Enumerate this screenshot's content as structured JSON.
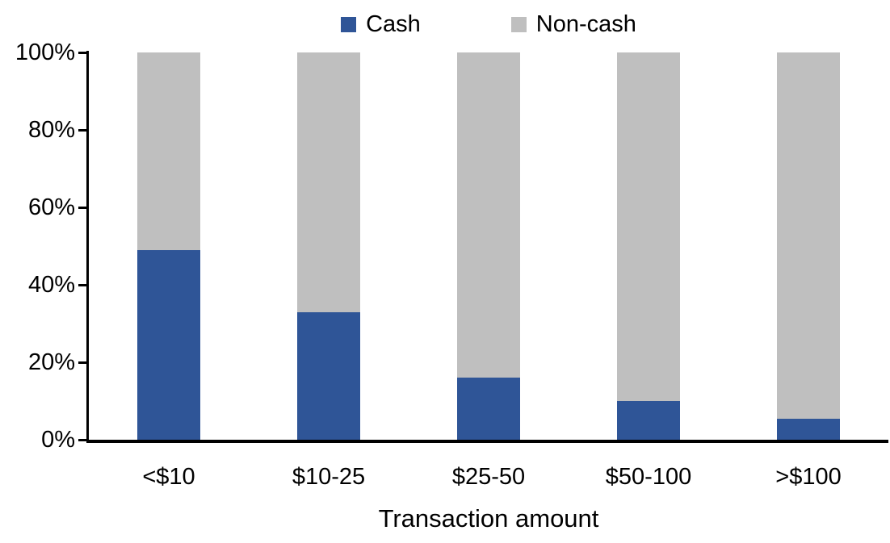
{
  "chart_data": {
    "type": "bar",
    "stacked": true,
    "percent_stacked": true,
    "title": "",
    "xlabel": "Transaction amount",
    "ylabel": "",
    "categories": [
      "<$10",
      "$10-25",
      "$25-50",
      "$50-100",
      ">$100"
    ],
    "series": [
      {
        "name": "Cash",
        "color": "#2F5597",
        "values": [
          49,
          33,
          16,
          10,
          5.5
        ]
      },
      {
        "name": "Non-cash",
        "color": "#BFBFBF",
        "values": [
          51,
          67,
          84,
          90,
          94.5
        ]
      }
    ],
    "ylim": [
      0,
      100
    ],
    "y_ticks": [
      {
        "value": 0,
        "label": "0%"
      },
      {
        "value": 20,
        "label": "20%"
      },
      {
        "value": 40,
        "label": "40%"
      },
      {
        "value": 60,
        "label": "60%"
      },
      {
        "value": 80,
        "label": "80%"
      },
      {
        "value": 100,
        "label": "100%"
      }
    ],
    "grid": false,
    "legend_position": "top",
    "axis_color": "#000000",
    "background_color": "#FFFFFF"
  }
}
